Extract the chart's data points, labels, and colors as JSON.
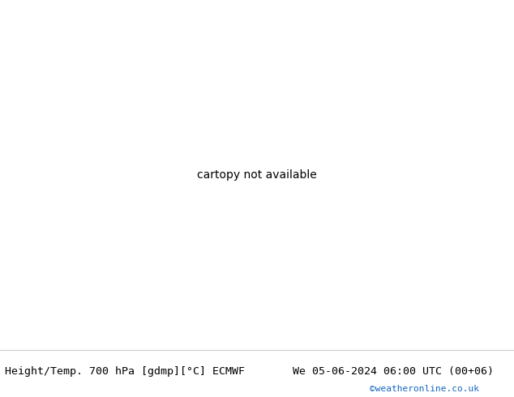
{
  "title_left": "Height/Temp. 700 hPa [gdmp][°C] ECMWF",
  "title_right": "We 05-06-2024 06:00 UTC (00+06)",
  "credit": "©weatheronline.co.uk",
  "land_color": "#b5e57a",
  "sea_color": "#d0d0d0",
  "border_color": "#aaaaaa",
  "black_contour_color": "#000000",
  "pink_contour_color": "#ff0080",
  "fig_width": 6.34,
  "fig_height": 4.9,
  "dpi": 100,
  "title_fontsize": 9.5,
  "credit_fontsize": 8,
  "credit_color": "#1565C0",
  "label_fontsize": 8,
  "extent": [
    -15,
    55,
    22,
    55
  ]
}
